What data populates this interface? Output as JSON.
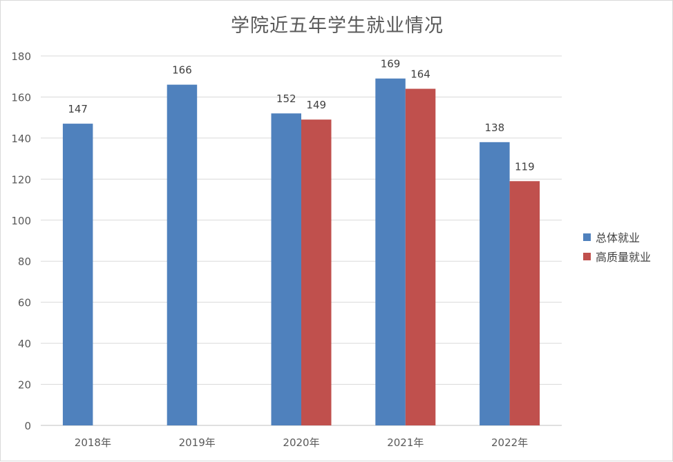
{
  "chart_data": {
    "type": "bar",
    "title": "学院近五年学生就业情况",
    "categories": [
      "2018年",
      "2019年",
      "2020年",
      "2021年",
      "2022年"
    ],
    "series": [
      {
        "name": "总体就业",
        "color": "#4f81bd",
        "values": [
          147,
          166,
          152,
          169,
          138
        ]
      },
      {
        "name": "高质量就业",
        "color": "#c0504d",
        "values": [
          null,
          null,
          149,
          164,
          119
        ]
      }
    ],
    "ylim": [
      0,
      180
    ],
    "yticks": [
      0,
      20,
      40,
      60,
      80,
      100,
      120,
      140,
      160,
      180
    ],
    "grid": true,
    "legend_position": "right"
  }
}
